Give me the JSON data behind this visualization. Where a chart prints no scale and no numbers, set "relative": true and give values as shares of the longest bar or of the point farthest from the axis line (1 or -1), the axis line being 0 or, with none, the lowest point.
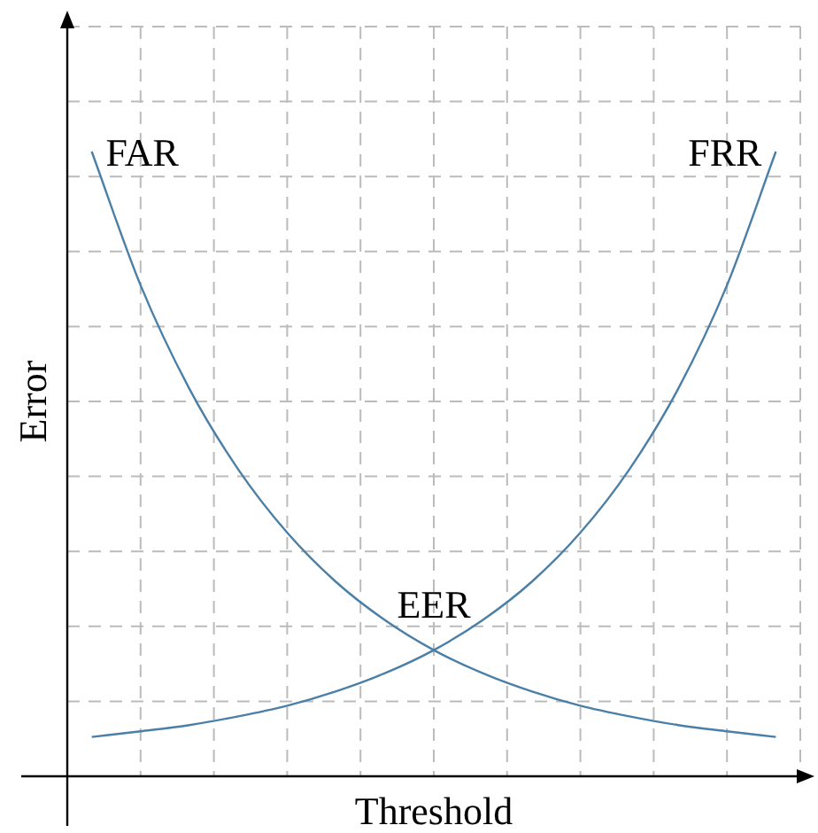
{
  "chart_data": {
    "type": "line",
    "relative": true,
    "xlabel": "Threshold",
    "ylabel": "Error",
    "grid": true,
    "legend": false,
    "marker": "none",
    "line_style": "solid",
    "categories": [
      null,
      null,
      null,
      null,
      null,
      null,
      null,
      null,
      null,
      null,
      null,
      null,
      null,
      null,
      null
    ],
    "series": [
      {
        "name": "FAR",
        "color": "#4a7fa8",
        "values": [
          1.0,
          0.786,
          0.62,
          0.491,
          0.39,
          0.311,
          0.25,
          0.202,
          0.165,
          0.136,
          0.113,
          0.096,
          0.082,
          0.072,
          0.063
        ]
      },
      {
        "name": "FRR",
        "color": "#4a7fa8",
        "values": [
          0.063,
          0.072,
          0.082,
          0.096,
          0.113,
          0.136,
          0.165,
          0.202,
          0.25,
          0.311,
          0.39,
          0.491,
          0.62,
          0.786,
          1.0
        ]
      }
    ],
    "annotations": [
      "EER"
    ]
  }
}
